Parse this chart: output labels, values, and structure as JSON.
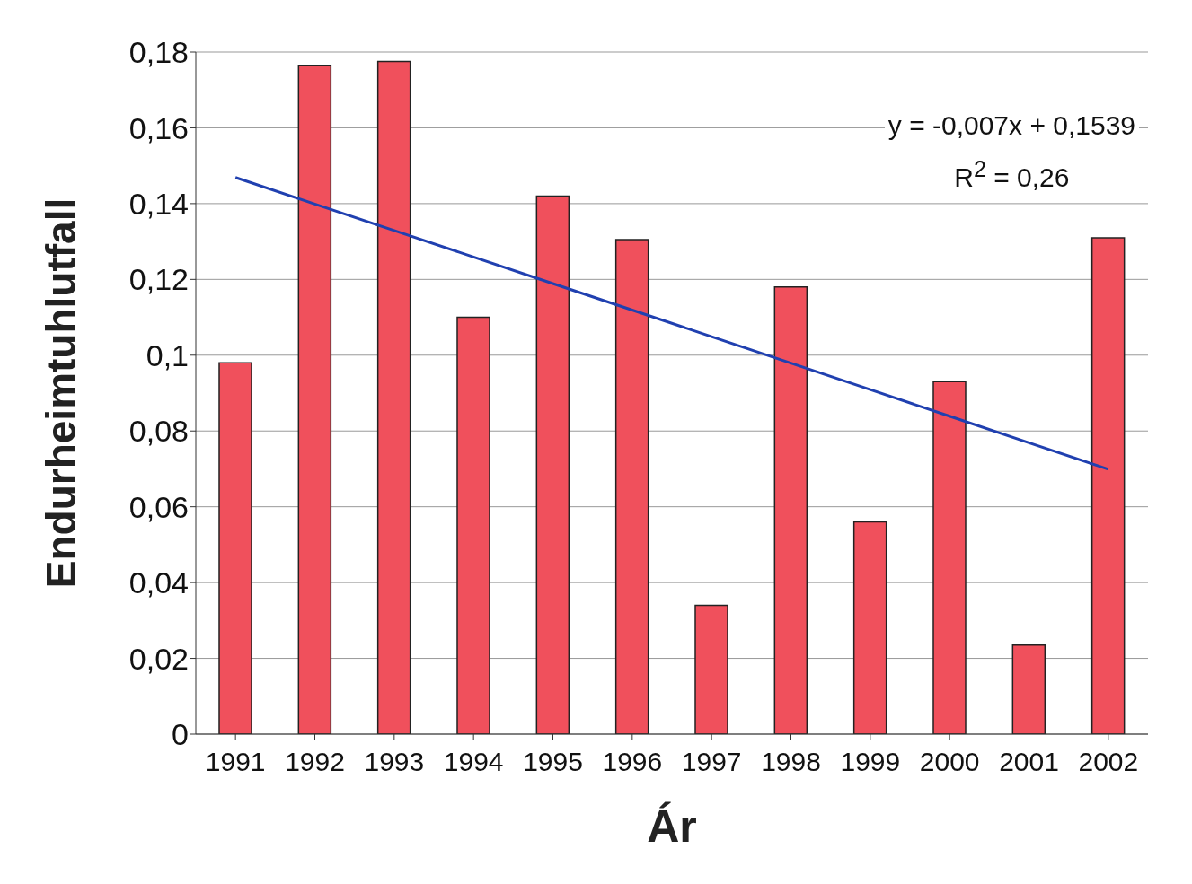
{
  "chart_data": {
    "type": "bar",
    "xlabel": "Ár",
    "ylabel": "Endurheimtuhlutfall",
    "categories": [
      "1991",
      "1992",
      "1993",
      "1994",
      "1995",
      "1996",
      "1997",
      "1998",
      "1999",
      "2000",
      "2001",
      "2002"
    ],
    "series": [
      {
        "color": "#f0505c",
        "values": [
          0.098,
          0.1765,
          0.1775,
          0.11,
          0.142,
          0.1305,
          0.034,
          0.118,
          0.056,
          0.093,
          0.0235,
          0.131
        ]
      },
      {
        "type": "line",
        "color": "#2040b0",
        "values": [
          0.1469,
          0.1399,
          0.1329,
          0.1259,
          0.1189,
          0.1119,
          0.1049,
          0.0979,
          0.0909,
          0.0839,
          0.0769,
          0.0699
        ]
      }
    ],
    "ylim": [
      0,
      0.18
    ],
    "yticks": [
      0,
      {
        "value": 0.02,
        "label": "0,02"
      },
      {
        "value": 0.04,
        "label": "0,04"
      },
      {
        "value": 0.06,
        "label": "0,06"
      },
      {
        "value": 0.08,
        "label": "0,08"
      },
      {
        "value": 0.1,
        "label": "0,1"
      },
      {
        "value": 0.12,
        "label": "0,12"
      },
      {
        "value": 0.14,
        "label": "0,14"
      },
      {
        "value": 0.16,
        "label": "0,16"
      },
      {
        "value": 0.18,
        "label": "0,18"
      }
    ],
    "grid": "y",
    "annotations": [
      "y = -0,007x + 0,1539",
      "R$^{2}$ = 0,26"
    ]
  }
}
